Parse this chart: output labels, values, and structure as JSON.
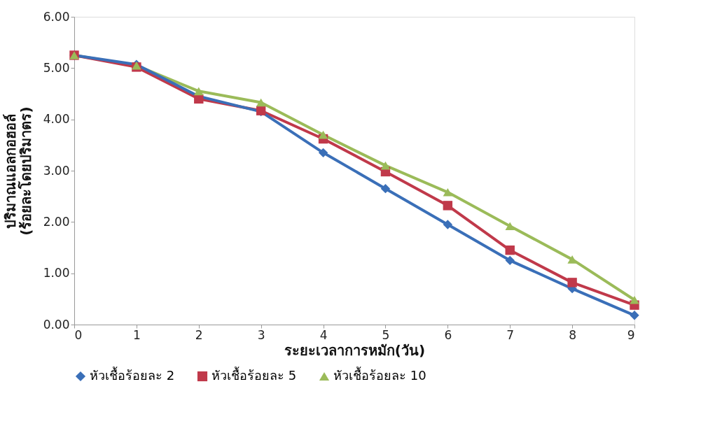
{
  "chart_data": {
    "type": "line",
    "xlabel": "ระยะเวลาการหมัก(วัน)",
    "ylabel": "ปริมาณแอลกอฮอล์\n(ร้อยละโดยปริมาตร)",
    "x": [
      0,
      1,
      2,
      3,
      4,
      5,
      6,
      7,
      8,
      9
    ],
    "series": [
      {
        "name": "หัวเชื้อร้อยละ 2",
        "color": "#3a6fb8",
        "marker": "diamond",
        "values": [
          5.25,
          5.07,
          4.45,
          4.15,
          3.35,
          2.65,
          1.95,
          1.25,
          0.7,
          0.18
        ]
      },
      {
        "name": "หัวเชื้อร้อยละ 5",
        "color": "#c0394a",
        "marker": "square",
        "values": [
          5.25,
          5.02,
          4.4,
          4.17,
          3.62,
          2.98,
          2.32,
          1.45,
          0.82,
          0.38
        ]
      },
      {
        "name": "หัวเชื้อร้อยละ 10",
        "color": "#9bbb59",
        "marker": "triangle",
        "values": [
          5.25,
          5.05,
          4.55,
          4.33,
          3.7,
          3.1,
          2.58,
          1.92,
          1.27,
          0.48
        ]
      }
    ],
    "xlim": [
      0,
      9
    ],
    "xticks": [
      0,
      1,
      2,
      3,
      4,
      5,
      6,
      7,
      8,
      9
    ],
    "ylim": [
      0,
      6
    ],
    "yticks": [
      {
        "value": 0,
        "label": "0.00"
      },
      {
        "value": 1,
        "label": "1.00"
      },
      {
        "value": 2,
        "label": "2.00"
      },
      {
        "value": 3,
        "label": "3.00"
      },
      {
        "value": 4,
        "label": "4.00"
      },
      {
        "value": 5,
        "label": "5.00"
      },
      {
        "value": 6,
        "label": "6.00"
      }
    ],
    "grid": false,
    "legend": "bottom",
    "line_style": "solid"
  }
}
